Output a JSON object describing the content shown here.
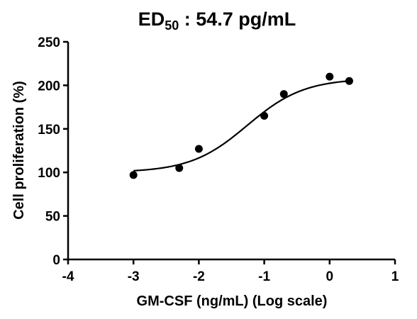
{
  "chart_data": {
    "type": "scatter",
    "title_main": "ED",
    "title_sub": "50",
    "title_rest": " : 54.7 pg/mL",
    "xlabel": "GM-CSF (ng/mL) (Log scale)",
    "ylabel": "Cell proliferation (%)",
    "xlim": [
      -4,
      1
    ],
    "ylim": [
      0,
      250
    ],
    "xticks": [
      "-4",
      "-3",
      "-2",
      "-1",
      "0",
      "1"
    ],
    "yticks": [
      "0",
      "50",
      "100",
      "150",
      "200",
      "250"
    ],
    "grid": false,
    "series": [
      {
        "x": [
          -3,
          -2.3,
          -2,
          -1,
          -0.7,
          0,
          0.3
        ],
        "y": [
          97,
          105,
          127,
          165,
          190,
          210,
          205
        ]
      }
    ],
    "fit": {
      "model": "4PL",
      "bottom": 100,
      "top": 208,
      "logEC50": -1.26,
      "hill": 1.0,
      "x_range": [
        -3,
        0.3
      ]
    }
  }
}
